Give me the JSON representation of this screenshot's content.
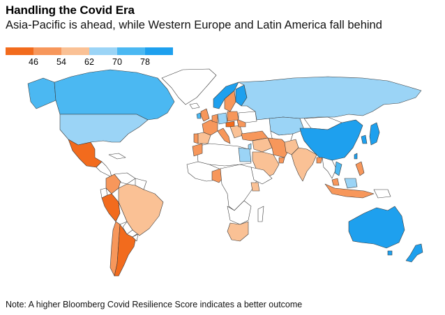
{
  "title": "Handling the Covid Era",
  "subtitle": "Asia-Pacific is ahead, while Western Europe and Latin America fall behind",
  "legend": {
    "labels": [
      "46",
      "54",
      "62",
      "70",
      "78"
    ],
    "colors": [
      "#f26b1d",
      "#f7975b",
      "#fac195",
      "#9bd4f6",
      "#4bb8f2",
      "#1ea0ee"
    ]
  },
  "colors": {
    "no_data": "#ffffff",
    "border": "#3a3a3a"
  },
  "note": "Note: A higher Bloomberg Covid Resilience Score indicates a better outcome"
}
